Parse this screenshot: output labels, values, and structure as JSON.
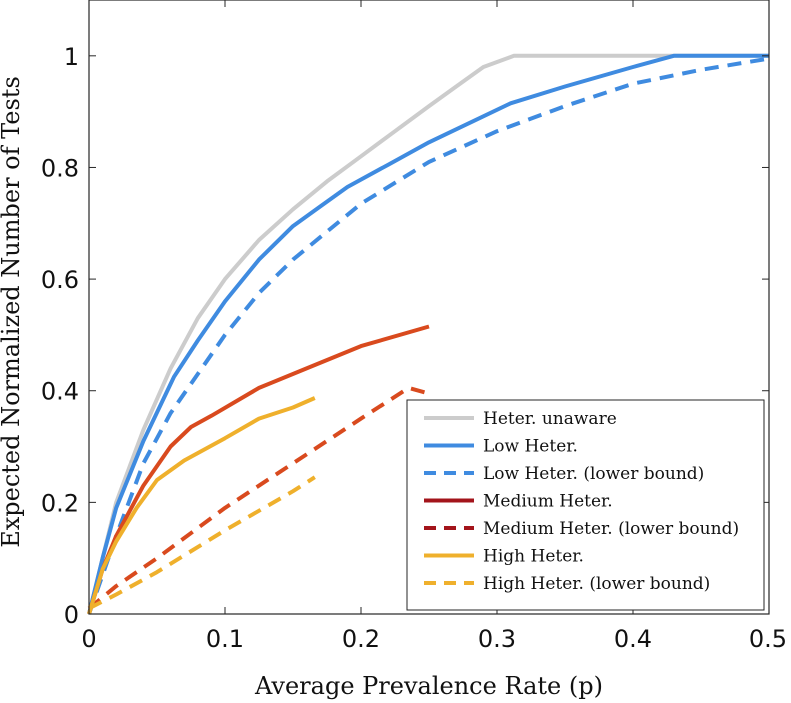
{
  "chart_data": {
    "type": "line",
    "title": "",
    "xlabel": "Average Prevalence Rate (p)",
    "ylabel": "Expected Normalized Number of Tests",
    "xlim": [
      0,
      0.5
    ],
    "ylim": [
      0,
      1.1
    ],
    "xticks": [
      0,
      0.1,
      0.2,
      0.3,
      0.4,
      0.5
    ],
    "xtick_labels": [
      "0",
      "0.1",
      "0.2",
      "0.3",
      "0.4",
      "0.5"
    ],
    "yticks": [
      0,
      0.2,
      0.4,
      0.6,
      0.8,
      1
    ],
    "ytick_labels": [
      "0",
      "0.2",
      "0.4",
      "0.6",
      "0.8",
      "1"
    ],
    "grid": false,
    "legend_position": "bottom-right",
    "colors": {
      "unaware": "#cccccc",
      "low": "#3f8be0",
      "medium": "#d94a1e",
      "medium_legend": "#a3141b",
      "high": "#efb02c"
    },
    "series": [
      {
        "name": "Heter. unaware",
        "color": "#cccccc",
        "dash": "solid",
        "x": [
          0,
          0.01,
          0.02,
          0.04,
          0.06,
          0.08,
          0.1,
          0.125,
          0.15,
          0.175,
          0.2,
          0.225,
          0.25,
          0.27,
          0.29,
          0.3125,
          0.35,
          0.4,
          0.45,
          0.5
        ],
        "y": [
          0,
          0.1,
          0.2,
          0.33,
          0.44,
          0.53,
          0.6,
          0.67,
          0.725,
          0.775,
          0.82,
          0.865,
          0.91,
          0.945,
          0.98,
          1.0,
          1.0,
          1.0,
          1.0,
          1.0
        ]
      },
      {
        "name": "Low Heter.",
        "color": "#3f8be0",
        "dash": "solid",
        "x": [
          0,
          0.01,
          0.02,
          0.04,
          0.0625,
          0.08,
          0.1,
          0.125,
          0.15,
          0.17,
          0.19,
          0.22,
          0.25,
          0.28,
          0.31,
          0.35,
          0.4,
          0.43,
          0.5
        ],
        "y": [
          0,
          0.1,
          0.19,
          0.31,
          0.425,
          0.49,
          0.56,
          0.635,
          0.695,
          0.73,
          0.765,
          0.805,
          0.845,
          0.88,
          0.915,
          0.945,
          0.98,
          1.0,
          1.0
        ]
      },
      {
        "name": "Low Heter. (lower bound)",
        "color": "#3f8be0",
        "dash": "dashed",
        "x": [
          0,
          0.01,
          0.02,
          0.04,
          0.06,
          0.08,
          0.1,
          0.125,
          0.15,
          0.175,
          0.2,
          0.25,
          0.3,
          0.35,
          0.4,
          0.45,
          0.5
        ],
        "y": [
          0,
          0.07,
          0.14,
          0.27,
          0.36,
          0.43,
          0.5,
          0.575,
          0.635,
          0.685,
          0.735,
          0.81,
          0.865,
          0.91,
          0.95,
          0.975,
          0.995
        ]
      },
      {
        "name": "Medium Heter.",
        "color": "#d94a1e",
        "legend_color": "#a3141b",
        "dash": "solid",
        "x": [
          0,
          0.01,
          0.02,
          0.04,
          0.06,
          0.075,
          0.09,
          0.125,
          0.16,
          0.2,
          0.25
        ],
        "y": [
          0,
          0.08,
          0.14,
          0.23,
          0.3,
          0.335,
          0.355,
          0.405,
          0.44,
          0.48,
          0.515
        ]
      },
      {
        "name": "Medium Heter. (lower bound)",
        "color": "#d94a1e",
        "legend_color": "#a3141b",
        "dash": "dashed",
        "x": [
          0,
          0.02,
          0.05,
          0.1,
          0.15,
          0.2,
          0.235,
          0.25
        ],
        "y": [
          0.01,
          0.05,
          0.1,
          0.19,
          0.27,
          0.35,
          0.405,
          0.395
        ]
      },
      {
        "name": "High Heter.",
        "color": "#efb02c",
        "dash": "solid",
        "x": [
          0,
          0.01,
          0.02,
          0.035,
          0.05,
          0.07,
          0.1,
          0.125,
          0.15,
          0.166
        ],
        "y": [
          0,
          0.08,
          0.13,
          0.19,
          0.24,
          0.275,
          0.315,
          0.35,
          0.37,
          0.387
        ]
      },
      {
        "name": "High Heter. (lower bound)",
        "color": "#efb02c",
        "dash": "dashed",
        "x": [
          0,
          0.02,
          0.05,
          0.1,
          0.15,
          0.166
        ],
        "y": [
          0.01,
          0.035,
          0.075,
          0.15,
          0.22,
          0.245
        ]
      }
    ]
  }
}
